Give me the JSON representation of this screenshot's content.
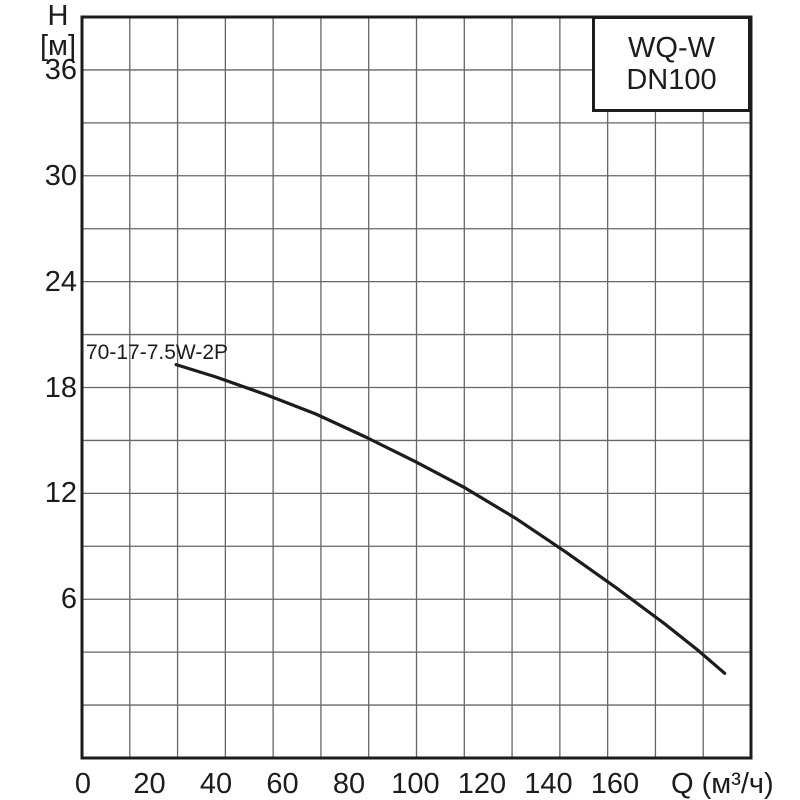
{
  "chart_data": {
    "type": "line",
    "title": "",
    "legend": {
      "line1": "WQ-W",
      "line2": "DN100",
      "position": "top-right"
    },
    "ylabel_line1": "H",
    "ylabel_line2": "[м]",
    "xlabel": "Q (м³/ч)",
    "x_ticks": [
      0,
      20,
      40,
      60,
      80,
      100,
      120,
      140,
      160
    ],
    "y_ticks": [
      36,
      30,
      24,
      18,
      12,
      6
    ],
    "xlim": [
      0,
      201
    ],
    "ylim": [
      -3,
      39
    ],
    "grid": "on",
    "series": [
      {
        "name": "70-17-7.5W-2P",
        "x": [
          28,
          40,
          55,
          70,
          85,
          100,
          115,
          130,
          145,
          160,
          175,
          185,
          193
        ],
        "y": [
          19.3,
          18.6,
          17.6,
          16.5,
          15.2,
          13.8,
          12.3,
          10.6,
          8.7,
          6.7,
          4.6,
          3.1,
          1.8
        ]
      }
    ],
    "colors": {
      "curve": "#1c1c1c",
      "grid": "#666666",
      "frame": "#1c1c1c",
      "text": "#1c1c1c",
      "background": "#ffffff"
    }
  }
}
